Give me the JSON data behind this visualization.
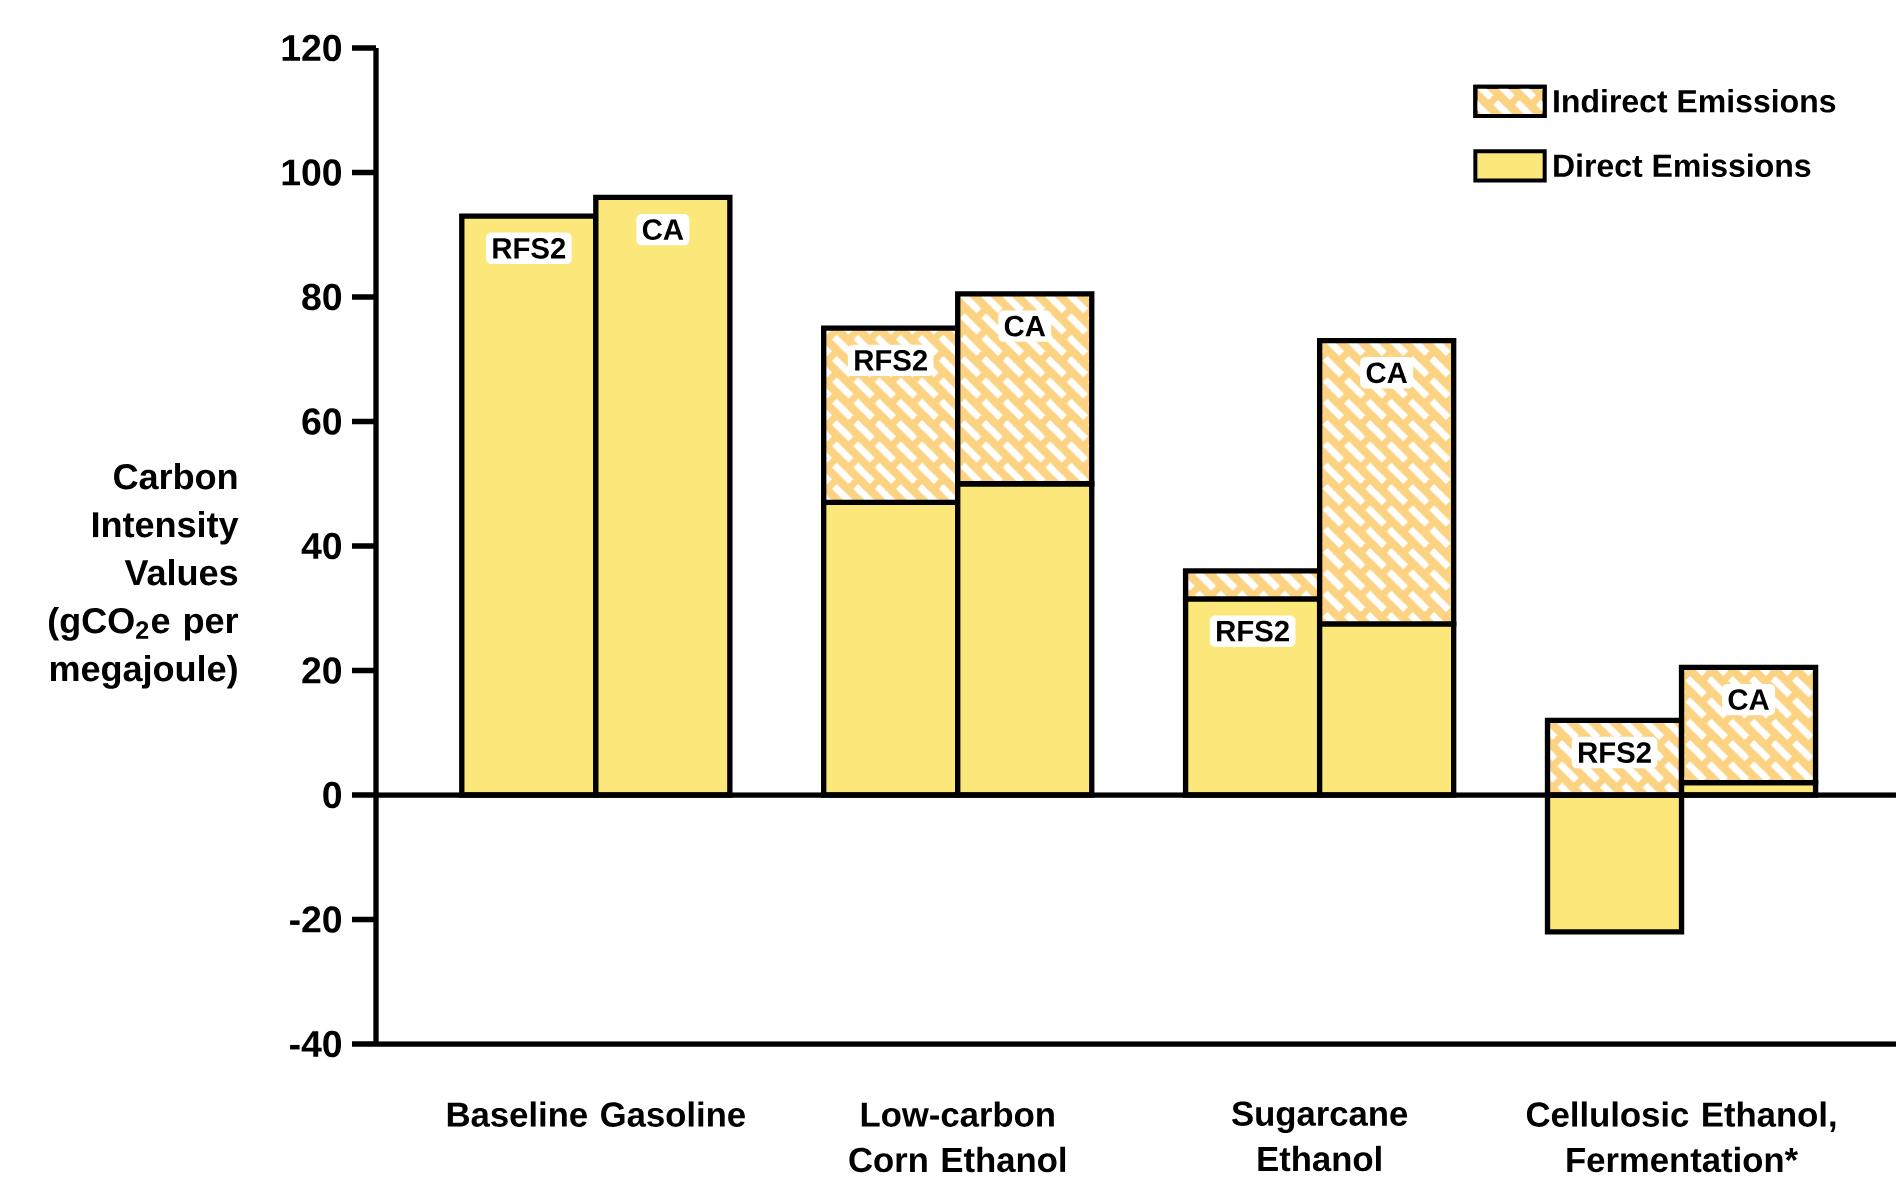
{
  "chart_data": {
    "type": "bar",
    "stacked": true,
    "categories": [
      "RFS2",
      "CA",
      "RFS2",
      "CA",
      "RFS2",
      "CA",
      "RFS2",
      "CA"
    ],
    "series": [
      {
        "name": "Direct Emissions",
        "color": "#fbe77a",
        "values": [
          93,
          96,
          47,
          50,
          31.5,
          27.5,
          -22,
          2
        ]
      },
      {
        "name": "Indirect Emissions",
        "color": "#fcd383",
        "values": [
          null,
          null,
          28,
          30.5,
          4.5,
          45.5,
          12,
          18.5
        ]
      }
    ],
    "ylabel": "Carbon Intensity Values (gCO$_{2}$e per megajoule)",
    "ylim": [
      -40,
      120
    ],
    "yticks": [
      -40,
      -20,
      0,
      20,
      40,
      60,
      80,
      100,
      120
    ],
    "ref_lines": [
      {
        "axis": "y",
        "value": 0
      }
    ],
    "annotations": [
      "Baseline Gasoline",
      "Low-carbon Corn Ethanol",
      "Sugarcane Ethanol",
      "Cellulosic Ethanol, Fermentation*"
    ],
    "legend": "top right",
    "grid": false
  }
}
